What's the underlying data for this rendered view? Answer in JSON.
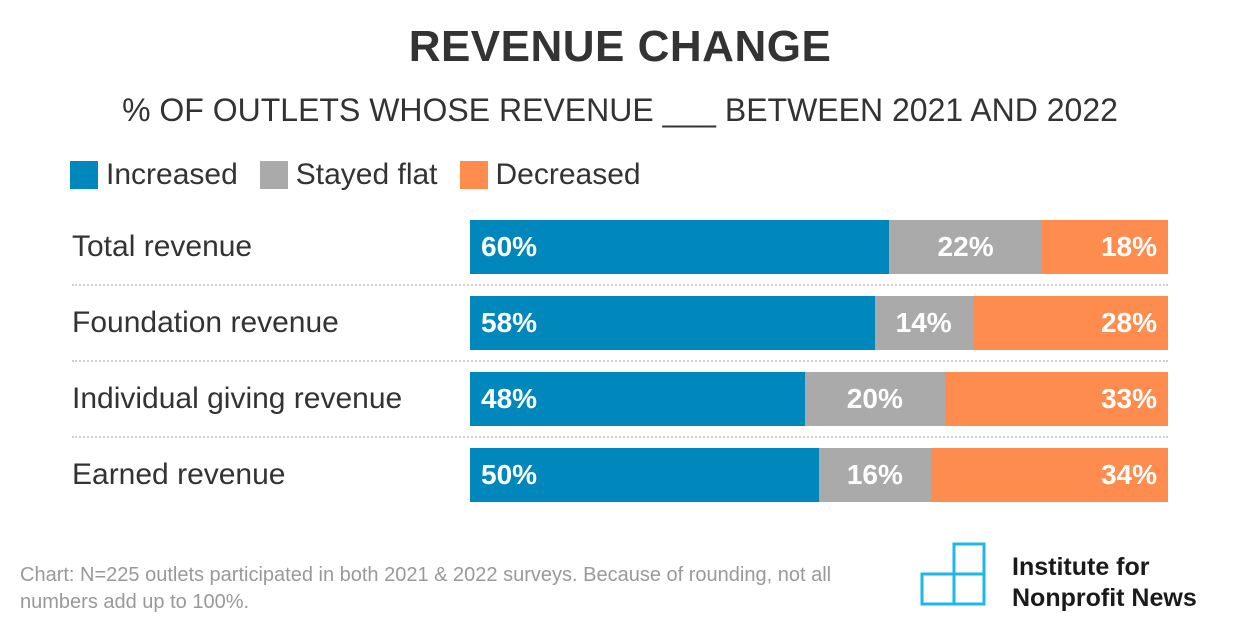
{
  "chart_data": {
    "type": "bar",
    "orientation": "horizontal",
    "stacked": true,
    "title": "REVENUE CHANGE",
    "subtitle": "% OF OUTLETS WHOSE REVENUE ___ BETWEEN 2021 AND 2022",
    "categories": [
      "Total revenue",
      "Foundation revenue",
      "Individual giving revenue",
      "Earned revenue"
    ],
    "series": [
      {
        "name": "Increased",
        "color": "#0088bd",
        "values": [
          60,
          58,
          48,
          50
        ],
        "labels": [
          "60%",
          "58%",
          "48%",
          "50%"
        ]
      },
      {
        "name": "Stayed flat",
        "color": "#aaaaaa",
        "values": [
          22,
          14,
          20,
          16
        ],
        "labels": [
          "22%",
          "14%",
          "20%",
          "16%"
        ]
      },
      {
        "name": "Decreased",
        "color": "#ff8c4f",
        "values": [
          18,
          28,
          33,
          34
        ],
        "labels": [
          "18%",
          "28%",
          "33%",
          "34%"
        ]
      }
    ],
    "legend_position": "top-left",
    "xlim": [
      0,
      100
    ]
  },
  "footnote": "Chart: N=225 outlets participated in both 2021 & 2022 surveys. Because of rounding, not all numbers add up to 100%.",
  "logo": {
    "line1": "Institute for",
    "line2": "Nonprofit News",
    "icon": "stacked-squares-icon",
    "color": "#1fb6e8"
  }
}
